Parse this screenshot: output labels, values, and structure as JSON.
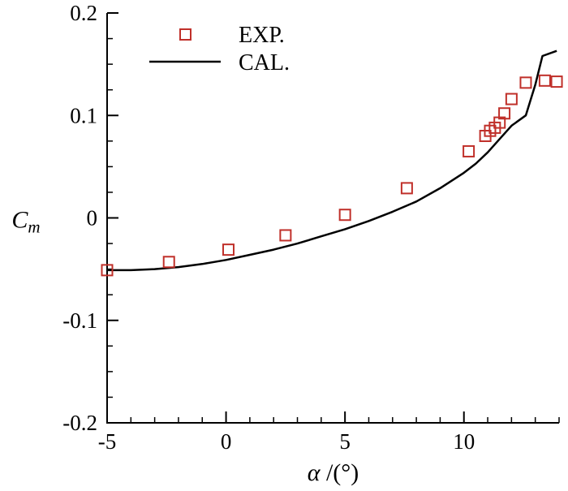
{
  "chart_data": {
    "type": "line",
    "xlabel": {
      "symbol": "α",
      "unit": " /(°)"
    },
    "ylabel": {
      "symbol": "C",
      "subscript": "m"
    },
    "xlim": [
      -5,
      14
    ],
    "ylim": [
      -0.2,
      0.2
    ],
    "x_ticks": [
      -5,
      0,
      5,
      10
    ],
    "x_tick_labels": [
      "-5",
      "0",
      "5",
      "10"
    ],
    "y_ticks": [
      -0.2,
      -0.1,
      0,
      0.1,
      0.2
    ],
    "y_tick_labels": [
      "-0.2",
      "-0.1",
      "0",
      "0.1",
      "0.2"
    ],
    "grid": false,
    "legend_position": "top-left",
    "series": [
      {
        "name": "EXP.",
        "kind": "scatter",
        "marker": "square",
        "color": "#c0302a",
        "x": [
          -5.0,
          -2.4,
          0.1,
          2.5,
          5.0,
          7.6,
          10.2,
          10.9,
          11.1,
          11.3,
          11.5,
          11.7,
          12.0,
          12.6,
          13.4,
          13.9
        ],
        "y": [
          -0.051,
          -0.043,
          -0.031,
          -0.017,
          0.003,
          0.029,
          0.065,
          0.08,
          0.085,
          0.088,
          0.093,
          0.102,
          0.116,
          0.132,
          0.134,
          0.133
        ]
      },
      {
        "name": "CAL.",
        "kind": "line",
        "color": "#000000",
        "x": [
          -5.0,
          -4.0,
          -3.0,
          -2.0,
          -1.0,
          0.0,
          1.0,
          2.0,
          3.0,
          4.0,
          5.0,
          6.0,
          7.0,
          8.0,
          9.0,
          10.0,
          10.5,
          11.0,
          11.5,
          12.0,
          12.6,
          13.0,
          13.3,
          13.9
        ],
        "y": [
          -0.051,
          -0.051,
          -0.05,
          -0.048,
          -0.045,
          -0.041,
          -0.036,
          -0.031,
          -0.025,
          -0.018,
          -0.011,
          -0.003,
          0.006,
          0.016,
          0.029,
          0.044,
          0.053,
          0.064,
          0.077,
          0.09,
          0.1,
          0.13,
          0.158,
          0.163
        ]
      }
    ]
  }
}
